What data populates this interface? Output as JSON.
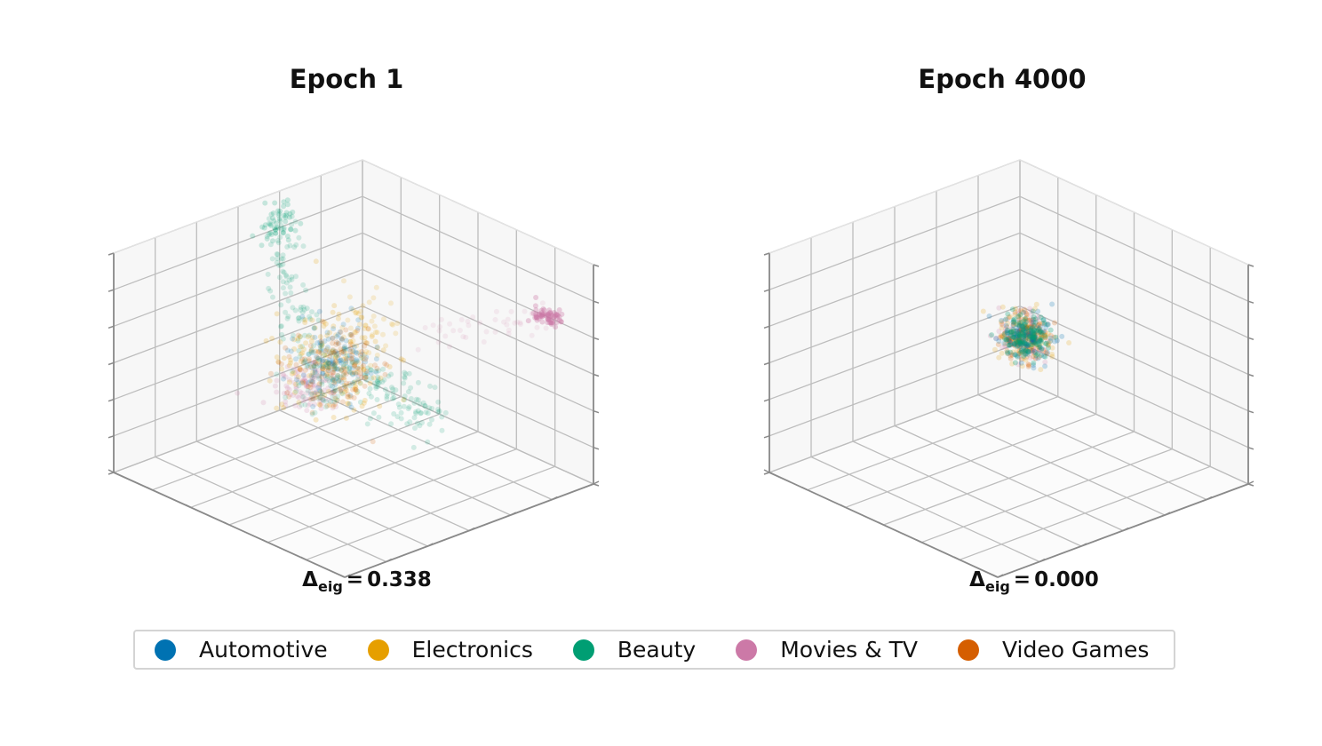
{
  "colors": {
    "automotive": "#0072B2",
    "electronics": "#E69F00",
    "beauty": "#009E73",
    "movies_tv": "#CC79A7",
    "video_games": "#D55E00"
  },
  "legend": {
    "items": [
      {
        "label": "Automotive",
        "color": "#0072B2"
      },
      {
        "label": "Electronics",
        "color": "#E69F00"
      },
      {
        "label": "Beauty",
        "color": "#009E73"
      },
      {
        "label": "Movies & TV",
        "color": "#CC79A7"
      },
      {
        "label": "Video Games",
        "color": "#D55E00"
      }
    ],
    "placement": "bottom-center"
  },
  "chart_data": [
    {
      "type": "scatter",
      "projection": "3d",
      "title": "Epoch 1",
      "annotation": {
        "symbol": "Δ",
        "subscript": "eig",
        "equals": "=",
        "value": "0.338"
      },
      "grid": true,
      "axis_tick_labels": false,
      "series": [
        {
          "name": "Automotive",
          "color": "#0072B2",
          "cluster": "center"
        },
        {
          "name": "Electronics",
          "color": "#E69F00",
          "cluster": "center, spread upward"
        },
        {
          "name": "Beauty",
          "color": "#009E73",
          "cluster": "center plus arm extending up-left and arm extending right"
        },
        {
          "name": "Movies & TV",
          "color": "#CC79A7",
          "cluster": "center-left plus separated tight cluster to the far right"
        },
        {
          "name": "Video Games",
          "color": "#D55E00",
          "cluster": "center"
        }
      ]
    },
    {
      "type": "scatter",
      "projection": "3d",
      "title": "Epoch 4000",
      "annotation": {
        "symbol": "Δ",
        "subscript": "eig",
        "equals": "=",
        "value": "0.000"
      },
      "grid": true,
      "axis_tick_labels": false,
      "series": [
        {
          "name": "Automotive",
          "color": "#0072B2",
          "cluster": "single compact isotropic blob near center"
        },
        {
          "name": "Electronics",
          "color": "#E69F00",
          "cluster": "single compact isotropic blob near center"
        },
        {
          "name": "Beauty",
          "color": "#009E73",
          "cluster": "single compact isotropic blob near center"
        },
        {
          "name": "Movies & TV",
          "color": "#CC79A7",
          "cluster": "single compact isotropic blob near center"
        },
        {
          "name": "Video Games",
          "color": "#D55E00",
          "cluster": "single compact isotropic blob near center"
        }
      ]
    }
  ]
}
